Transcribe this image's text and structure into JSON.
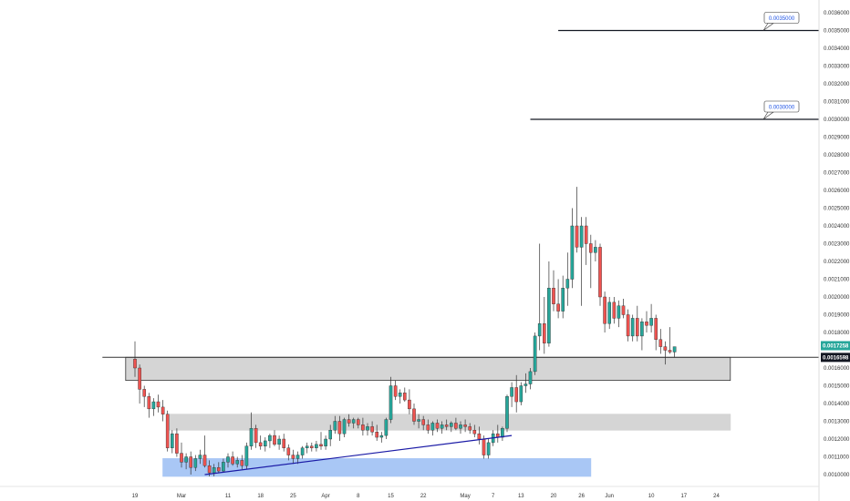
{
  "chart_data": {
    "type": "candlestick",
    "title": "",
    "xlabel": "",
    "ylabel": "",
    "ylim": [
      0.00096,
      0.00362
    ],
    "grid": false,
    "y_ticks": [
      "0.0036000",
      "0.0035000",
      "0.0034000",
      "0.0033000",
      "0.0032000",
      "0.0031000",
      "0.0030000",
      "0.0029000",
      "0.0028000",
      "0.0027000",
      "0.0026000",
      "0.0025000",
      "0.0024000",
      "0.0023000",
      "0.0022000",
      "0.0021000",
      "0.0020000",
      "0.0019000",
      "0.0018000",
      "0.0016000",
      "0.0015000",
      "0.0014000",
      "0.0013000",
      "0.0012000",
      "0.0011000",
      "0.0010000"
    ],
    "x_ticks": [
      {
        "label": "19",
        "day": 0
      },
      {
        "label": "Mar",
        "day": 10
      },
      {
        "label": "11",
        "day": 20
      },
      {
        "label": "18",
        "day": 27
      },
      {
        "label": "25",
        "day": 34
      },
      {
        "label": "Apr",
        "day": 41
      },
      {
        "label": "8",
        "day": 48
      },
      {
        "label": "15",
        "day": 55
      },
      {
        "label": "22",
        "day": 62
      },
      {
        "label": "May",
        "day": 71
      },
      {
        "label": "7",
        "day": 77
      },
      {
        "label": "13",
        "day": 83
      },
      {
        "label": "20",
        "day": 90
      },
      {
        "label": "26",
        "day": 96
      },
      {
        "label": "Jun",
        "day": 102
      },
      {
        "label": "10",
        "day": 111
      },
      {
        "label": "17",
        "day": 118
      },
      {
        "label": "24",
        "day": 125
      }
    ],
    "candles": [
      {
        "o": 0.00165,
        "h": 0.00175,
        "l": 0.00155,
        "c": 0.0016
      },
      {
        "o": 0.0016,
        "h": 0.00162,
        "l": 0.0014,
        "c": 0.00148
      },
      {
        "o": 0.00148,
        "h": 0.0015,
        "l": 0.00138,
        "c": 0.00144
      },
      {
        "o": 0.00144,
        "h": 0.00146,
        "l": 0.00132,
        "c": 0.00137
      },
      {
        "o": 0.00137,
        "h": 0.00143,
        "l": 0.00133,
        "c": 0.00141
      },
      {
        "o": 0.00141,
        "h": 0.00145,
        "l": 0.00135,
        "c": 0.00138
      },
      {
        "o": 0.00138,
        "h": 0.00142,
        "l": 0.0013,
        "c": 0.00134
      },
      {
        "o": 0.00134,
        "h": 0.00136,
        "l": 0.00113,
        "c": 0.00115
      },
      {
        "o": 0.00115,
        "h": 0.00125,
        "l": 0.00112,
        "c": 0.00123
      },
      {
        "o": 0.00123,
        "h": 0.00126,
        "l": 0.0011,
        "c": 0.00112
      },
      {
        "o": 0.00112,
        "h": 0.00118,
        "l": 0.00104,
        "c": 0.00107
      },
      {
        "o": 0.00107,
        "h": 0.00112,
        "l": 0.00103,
        "c": 0.0011
      },
      {
        "o": 0.0011,
        "h": 0.00113,
        "l": 0.001,
        "c": 0.00104
      },
      {
        "o": 0.00104,
        "h": 0.00111,
        "l": 0.00102,
        "c": 0.00109
      },
      {
        "o": 0.00109,
        "h": 0.00114,
        "l": 0.00106,
        "c": 0.00111
      },
      {
        "o": 0.00111,
        "h": 0.00122,
        "l": 0.00104,
        "c": 0.00105
      },
      {
        "o": 0.00105,
        "h": 0.00108,
        "l": 0.00099,
        "c": 0.00101
      },
      {
        "o": 0.00101,
        "h": 0.00106,
        "l": 0.00099,
        "c": 0.00104
      },
      {
        "o": 0.00104,
        "h": 0.00107,
        "l": 0.00101,
        "c": 0.00102
      },
      {
        "o": 0.00102,
        "h": 0.00109,
        "l": 0.00101,
        "c": 0.00107
      },
      {
        "o": 0.00107,
        "h": 0.00112,
        "l": 0.00104,
        "c": 0.0011
      },
      {
        "o": 0.0011,
        "h": 0.00113,
        "l": 0.00105,
        "c": 0.00106
      },
      {
        "o": 0.00106,
        "h": 0.0011,
        "l": 0.00104,
        "c": 0.00108
      },
      {
        "o": 0.00108,
        "h": 0.00111,
        "l": 0.00103,
        "c": 0.00105
      },
      {
        "o": 0.00105,
        "h": 0.00118,
        "l": 0.00103,
        "c": 0.00116
      },
      {
        "o": 0.00116,
        "h": 0.00135,
        "l": 0.00114,
        "c": 0.00126
      },
      {
        "o": 0.00126,
        "h": 0.00128,
        "l": 0.00115,
        "c": 0.00118
      },
      {
        "o": 0.00118,
        "h": 0.00122,
        "l": 0.00114,
        "c": 0.00116
      },
      {
        "o": 0.00116,
        "h": 0.00121,
        "l": 0.00113,
        "c": 0.00119
      },
      {
        "o": 0.00119,
        "h": 0.00123,
        "l": 0.00115,
        "c": 0.00122
      },
      {
        "o": 0.00122,
        "h": 0.00125,
        "l": 0.00116,
        "c": 0.00117
      },
      {
        "o": 0.00117,
        "h": 0.00122,
        "l": 0.00114,
        "c": 0.0012
      },
      {
        "o": 0.0012,
        "h": 0.00123,
        "l": 0.00113,
        "c": 0.00115
      },
      {
        "o": 0.00115,
        "h": 0.00117,
        "l": 0.00108,
        "c": 0.00111
      },
      {
        "o": 0.00111,
        "h": 0.00114,
        "l": 0.00106,
        "c": 0.00109
      },
      {
        "o": 0.00109,
        "h": 0.00113,
        "l": 0.00106,
        "c": 0.00111
      },
      {
        "o": 0.00111,
        "h": 0.00116,
        "l": 0.00109,
        "c": 0.00115
      },
      {
        "o": 0.00115,
        "h": 0.00118,
        "l": 0.00112,
        "c": 0.00116
      },
      {
        "o": 0.00116,
        "h": 0.00118,
        "l": 0.00113,
        "c": 0.00115
      },
      {
        "o": 0.00115,
        "h": 0.00119,
        "l": 0.00113,
        "c": 0.00117
      },
      {
        "o": 0.00117,
        "h": 0.00124,
        "l": 0.00114,
        "c": 0.00116
      },
      {
        "o": 0.00116,
        "h": 0.00122,
        "l": 0.00114,
        "c": 0.0012
      },
      {
        "o": 0.0012,
        "h": 0.00128,
        "l": 0.00116,
        "c": 0.00125
      },
      {
        "o": 0.00125,
        "h": 0.00133,
        "l": 0.00123,
        "c": 0.0013
      },
      {
        "o": 0.0013,
        "h": 0.00133,
        "l": 0.00119,
        "c": 0.00123
      },
      {
        "o": 0.00123,
        "h": 0.00132,
        "l": 0.00121,
        "c": 0.00131
      },
      {
        "o": 0.00131,
        "h": 0.00134,
        "l": 0.00127,
        "c": 0.00129
      },
      {
        "o": 0.00129,
        "h": 0.00132,
        "l": 0.00126,
        "c": 0.00131
      },
      {
        "o": 0.00131,
        "h": 0.00132,
        "l": 0.00126,
        "c": 0.00128
      },
      {
        "o": 0.00128,
        "h": 0.00132,
        "l": 0.00122,
        "c": 0.00125
      },
      {
        "o": 0.00125,
        "h": 0.00129,
        "l": 0.00122,
        "c": 0.00127
      },
      {
        "o": 0.00127,
        "h": 0.0013,
        "l": 0.00122,
        "c": 0.00124
      },
      {
        "o": 0.00124,
        "h": 0.00128,
        "l": 0.00119,
        "c": 0.00121
      },
      {
        "o": 0.00121,
        "h": 0.00124,
        "l": 0.00118,
        "c": 0.00122
      },
      {
        "o": 0.00122,
        "h": 0.00132,
        "l": 0.0012,
        "c": 0.00131
      },
      {
        "o": 0.00131,
        "h": 0.00155,
        "l": 0.00129,
        "c": 0.0015
      },
      {
        "o": 0.0015,
        "h": 0.00153,
        "l": 0.00142,
        "c": 0.00144
      },
      {
        "o": 0.00144,
        "h": 0.00148,
        "l": 0.0014,
        "c": 0.00146
      },
      {
        "o": 0.00146,
        "h": 0.00149,
        "l": 0.00141,
        "c": 0.00142
      },
      {
        "o": 0.00142,
        "h": 0.00148,
        "l": 0.00134,
        "c": 0.00137
      },
      {
        "o": 0.00137,
        "h": 0.0014,
        "l": 0.00128,
        "c": 0.0013
      },
      {
        "o": 0.0013,
        "h": 0.00134,
        "l": 0.00126,
        "c": 0.00131
      },
      {
        "o": 0.00131,
        "h": 0.00133,
        "l": 0.00125,
        "c": 0.00128
      },
      {
        "o": 0.00128,
        "h": 0.00131,
        "l": 0.00123,
        "c": 0.00125
      },
      {
        "o": 0.00125,
        "h": 0.0013,
        "l": 0.00122,
        "c": 0.00129
      },
      {
        "o": 0.00129,
        "h": 0.00131,
        "l": 0.00124,
        "c": 0.00126
      },
      {
        "o": 0.00126,
        "h": 0.0013,
        "l": 0.00123,
        "c": 0.00128
      },
      {
        "o": 0.00128,
        "h": 0.00131,
        "l": 0.00125,
        "c": 0.00127
      },
      {
        "o": 0.00127,
        "h": 0.0013,
        "l": 0.00124,
        "c": 0.00129
      },
      {
        "o": 0.00129,
        "h": 0.00132,
        "l": 0.00125,
        "c": 0.00126
      },
      {
        "o": 0.00126,
        "h": 0.0013,
        "l": 0.00123,
        "c": 0.00128
      },
      {
        "o": 0.00128,
        "h": 0.00131,
        "l": 0.00124,
        "c": 0.00127
      },
      {
        "o": 0.00127,
        "h": 0.00129,
        "l": 0.00123,
        "c": 0.00125
      },
      {
        "o": 0.00125,
        "h": 0.00128,
        "l": 0.00121,
        "c": 0.00123
      },
      {
        "o": 0.00123,
        "h": 0.00127,
        "l": 0.00117,
        "c": 0.0012
      },
      {
        "o": 0.0012,
        "h": 0.00122,
        "l": 0.00109,
        "c": 0.00111
      },
      {
        "o": 0.00111,
        "h": 0.0012,
        "l": 0.00109,
        "c": 0.00118
      },
      {
        "o": 0.00118,
        "h": 0.00125,
        "l": 0.00116,
        "c": 0.00123
      },
      {
        "o": 0.00123,
        "h": 0.00128,
        "l": 0.00118,
        "c": 0.00121
      },
      {
        "o": 0.00121,
        "h": 0.00127,
        "l": 0.00119,
        "c": 0.00126
      },
      {
        "o": 0.00126,
        "h": 0.00145,
        "l": 0.00124,
        "c": 0.00144
      },
      {
        "o": 0.00144,
        "h": 0.00152,
        "l": 0.00138,
        "c": 0.00149
      },
      {
        "o": 0.00149,
        "h": 0.00156,
        "l": 0.00135,
        "c": 0.00141
      },
      {
        "o": 0.00141,
        "h": 0.00152,
        "l": 0.00139,
        "c": 0.0015
      },
      {
        "o": 0.0015,
        "h": 0.00157,
        "l": 0.00146,
        "c": 0.00151
      },
      {
        "o": 0.00151,
        "h": 0.0016,
        "l": 0.00148,
        "c": 0.00158
      },
      {
        "o": 0.00158,
        "h": 0.0018,
        "l": 0.00156,
        "c": 0.00178
      },
      {
        "o": 0.00178,
        "h": 0.0023,
        "l": 0.0017,
        "c": 0.00185
      },
      {
        "o": 0.00185,
        "h": 0.002,
        "l": 0.00168,
        "c": 0.00174
      },
      {
        "o": 0.00174,
        "h": 0.0022,
        "l": 0.00172,
        "c": 0.00205
      },
      {
        "o": 0.00205,
        "h": 0.00215,
        "l": 0.00192,
        "c": 0.00196
      },
      {
        "o": 0.00196,
        "h": 0.0021,
        "l": 0.00188,
        "c": 0.00192
      },
      {
        "o": 0.00192,
        "h": 0.00212,
        "l": 0.00188,
        "c": 0.00205
      },
      {
        "o": 0.00205,
        "h": 0.00225,
        "l": 0.00195,
        "c": 0.0021
      },
      {
        "o": 0.0021,
        "h": 0.0025,
        "l": 0.00205,
        "c": 0.0024
      },
      {
        "o": 0.0024,
        "h": 0.00262,
        "l": 0.00225,
        "c": 0.00228
      },
      {
        "o": 0.00228,
        "h": 0.00245,
        "l": 0.00195,
        "c": 0.0024
      },
      {
        "o": 0.0024,
        "h": 0.00245,
        "l": 0.00218,
        "c": 0.0023
      },
      {
        "o": 0.0023,
        "h": 0.00235,
        "l": 0.00205,
        "c": 0.00225
      },
      {
        "o": 0.00225,
        "h": 0.00232,
        "l": 0.0022,
        "c": 0.00228
      },
      {
        "o": 0.00228,
        "h": 0.0023,
        "l": 0.00195,
        "c": 0.002
      },
      {
        "o": 0.002,
        "h": 0.00203,
        "l": 0.0018,
        "c": 0.00185
      },
      {
        "o": 0.00185,
        "h": 0.002,
        "l": 0.00182,
        "c": 0.00197
      },
      {
        "o": 0.00197,
        "h": 0.002,
        "l": 0.00185,
        "c": 0.00188
      },
      {
        "o": 0.00188,
        "h": 0.00198,
        "l": 0.00183,
        "c": 0.00195
      },
      {
        "o": 0.00195,
        "h": 0.00199,
        "l": 0.00188,
        "c": 0.0019
      },
      {
        "o": 0.0019,
        "h": 0.00193,
        "l": 0.00175,
        "c": 0.00178
      },
      {
        "o": 0.00178,
        "h": 0.0019,
        "l": 0.00175,
        "c": 0.00188
      },
      {
        "o": 0.00188,
        "h": 0.00195,
        "l": 0.00175,
        "c": 0.00178
      },
      {
        "o": 0.00178,
        "h": 0.00188,
        "l": 0.0017,
        "c": 0.00186
      },
      {
        "o": 0.00186,
        "h": 0.00192,
        "l": 0.0018,
        "c": 0.00184
      },
      {
        "o": 0.00184,
        "h": 0.00196,
        "l": 0.0018,
        "c": 0.00188
      },
      {
        "o": 0.00188,
        "h": 0.0019,
        "l": 0.0017,
        "c": 0.00176
      },
      {
        "o": 0.00176,
        "h": 0.00182,
        "l": 0.00168,
        "c": 0.00172
      },
      {
        "o": 0.00172,
        "h": 0.00175,
        "l": 0.00162,
        "c": 0.0017
      },
      {
        "o": 0.0017,
        "h": 0.00183,
        "l": 0.00168,
        "c": 0.00169
      },
      {
        "o": 0.00169,
        "h": 0.00172,
        "l": 0.00166,
        "c": 0.00172
      }
    ],
    "zones": [
      {
        "name": "upper-resistance-zone",
        "from_day": -2,
        "to_day": 128,
        "y1": 0.00153,
        "y2": 0.00166,
        "color": "#d5d5d5",
        "border": "#333333"
      },
      {
        "name": "middle-gray-zone",
        "from_day": 7,
        "to_day": 128,
        "y1": 0.00125,
        "y2": 0.00134,
        "color": "#d5d5d5",
        "border": "#d5d5d5"
      },
      {
        "name": "blue-demand-zone",
        "from_day": 6,
        "to_day": 98,
        "y1": 0.00099,
        "y2": 0.00109,
        "color": "#a9c7f5",
        "border": "#a9c7f5"
      }
    ],
    "top_line": {
      "from_day": -7,
      "y": 0.00166
    },
    "trendline": {
      "from_day": 15,
      "y1": 0.001,
      "to_day": 81,
      "y2": 0.00122,
      "color": "#1b1ba6"
    },
    "targets": [
      {
        "label": "0.0035000",
        "value": 0.0035,
        "from_day": 91
      },
      {
        "label": "0.0030000",
        "value": 0.003,
        "from_day": 85
      }
    ],
    "price_badges": [
      {
        "label": "0.0017258",
        "value": 0.0017258,
        "color": "#26a69a"
      },
      {
        "label": "0.0016598",
        "value": 0.0016598,
        "color": "#131722"
      }
    ],
    "colors": {
      "up": "#26a69a",
      "down": "#ef5350",
      "wick": "#333333"
    }
  }
}
